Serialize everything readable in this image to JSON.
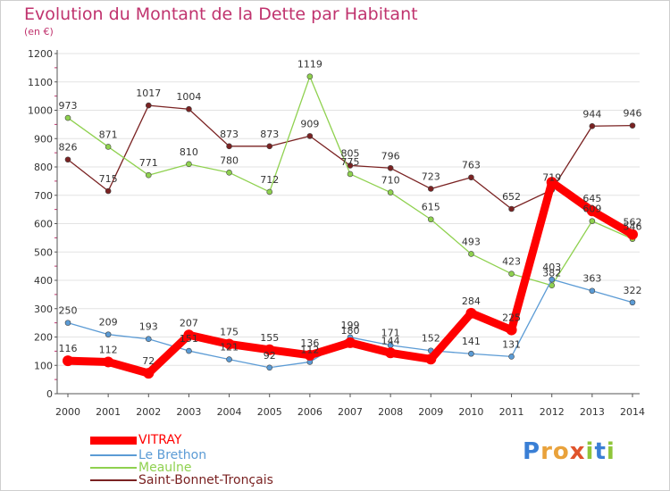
{
  "title": "Evolution du Montant de la Dette par Habitant",
  "subtitle": "(en €)",
  "logo_text": "Proxiti",
  "colors": {
    "title": "#c0336e",
    "axis": "#555555",
    "grid": "#e3e3e3",
    "tick_minor": "#c0336e"
  },
  "chart_data": {
    "type": "line",
    "title": "Evolution du Montant de la Dette par Habitant",
    "subtitle": "(en €)",
    "x": [
      "2000",
      "2001",
      "2002",
      "2003",
      "2004",
      "2005",
      "2006",
      "2007",
      "2008",
      "2009",
      "2010",
      "2011",
      "2012",
      "2013",
      "2014"
    ],
    "ylim": [
      0,
      1200
    ],
    "yticks": [
      0,
      100,
      200,
      300,
      400,
      500,
      600,
      700,
      800,
      900,
      1000,
      1100,
      1200
    ],
    "grid": true,
    "legend_position": "bottom-left",
    "series": [
      {
        "name": "VITRAY",
        "color": "#ff0000",
        "values": [
          116,
          112,
          72,
          207,
          175,
          155,
          136,
          180,
          144,
          122,
          284,
          225,
          746,
          645,
          562
        ],
        "labels": [
          "116",
          "112",
          "72",
          "207",
          "175",
          "155",
          "136",
          "180",
          "144",
          "",
          "284",
          "225",
          "",
          "645",
          "562"
        ]
      },
      {
        "name": "Le Brethon",
        "color": "#5b9bd5",
        "values": [
          250,
          209,
          193,
          151,
          121,
          92,
          112,
          199,
          171,
          152,
          141,
          131,
          403,
          363,
          322
        ],
        "labels": [
          "250",
          "209",
          "193",
          "151",
          "121",
          "92",
          "112",
          "199",
          "171",
          "152",
          "141",
          "131",
          "403",
          "363",
          "322"
        ]
      },
      {
        "name": "Meaulne",
        "color": "#8fd14f",
        "values": [
          973,
          871,
          771,
          810,
          780,
          712,
          1119,
          775,
          710,
          615,
          493,
          423,
          382,
          609,
          546
        ],
        "labels": [
          "973",
          "871",
          "771",
          "810",
          "780",
          "712",
          "1119",
          "775",
          "710",
          "615",
          "493",
          "423",
          "382",
          "609",
          "546"
        ]
      },
      {
        "name": "Saint-Bonnet-Tronçais",
        "color": "#7a2222",
        "values": [
          826,
          715,
          1017,
          1004,
          873,
          873,
          909,
          805,
          796,
          723,
          763,
          652,
          719,
          944,
          946
        ],
        "labels": [
          "826",
          "715",
          "1017",
          "1004",
          "873",
          "873",
          "909",
          "805",
          "796",
          "723",
          "763",
          "652",
          "719",
          "944",
          "946"
        ]
      }
    ]
  }
}
